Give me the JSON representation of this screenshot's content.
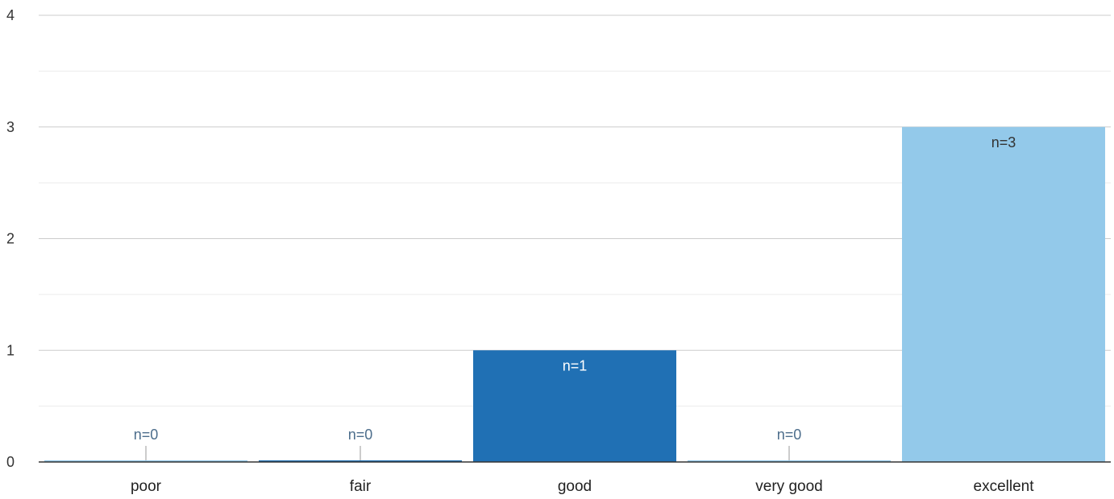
{
  "chart_data": {
    "type": "bar",
    "categories": [
      "poor",
      "fair",
      "good",
      "very good",
      "excellent"
    ],
    "values": [
      0,
      0,
      1,
      0,
      3
    ],
    "data_labels": [
      "n=0",
      "n=0",
      "n=1",
      "n=0",
      "n=3"
    ],
    "ylim": [
      0,
      4
    ],
    "y_ticks": [
      "0",
      "1",
      "2",
      "3",
      "4"
    ],
    "title": "",
    "xlabel": "",
    "ylabel": "",
    "grid": true,
    "legend": "none",
    "colors": {
      "bars": [
        "#93c9ea",
        "#2070b4",
        "#2070b4",
        "#93c9ea",
        "#93c9ea"
      ],
      "zero_label": "#4d6e8c",
      "label_on_dark": "#ffffff",
      "label_on_light": "#333333",
      "major_grid": "#cccccc",
      "minor_grid": "#ebebeb",
      "axis": "#333333"
    }
  }
}
